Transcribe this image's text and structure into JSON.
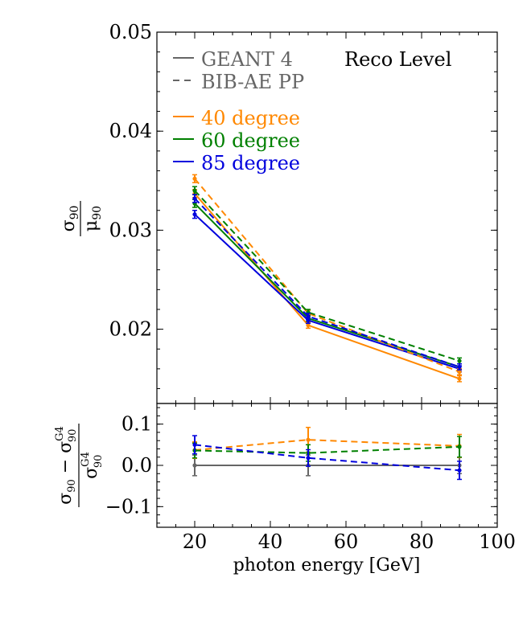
{
  "chart_data": [
    {
      "type": "line",
      "panel": "main",
      "ylabel": "σ90 / μ90",
      "ylabel_num": "σ",
      "ylabel_num_sub": "90",
      "ylabel_den": "μ",
      "ylabel_den_sub": "90",
      "xlim": [
        10,
        100
      ],
      "ylim": [
        0.0125,
        0.05
      ],
      "yticks": [
        0.02,
        0.03,
        0.04,
        0.05
      ],
      "ytick_labels": [
        "0.02",
        "0.03",
        "0.04",
        "0.05"
      ],
      "annotation": "Reco Level",
      "legend": {
        "style_entries": [
          {
            "label": "GEANT 4",
            "style": "solid",
            "color": "#666666"
          },
          {
            "label": "BIB-AE PP",
            "style": "dashed",
            "color": "#666666"
          }
        ],
        "color_entries": [
          {
            "label": "40 degree",
            "color": "#ff8800"
          },
          {
            "label": "60 degree",
            "color": "#008000"
          },
          {
            "label": "85 degree",
            "color": "#0000dd"
          }
        ]
      },
      "x": [
        20,
        50,
        90
      ],
      "series": [
        {
          "name": "40 degree",
          "model": "GEANT 4",
          "color": "#ff8800",
          "dashed": false,
          "values": [
            0.0337,
            0.0204,
            0.015
          ],
          "errors": [
            0.0004,
            0.0003,
            0.0003
          ]
        },
        {
          "name": "60 degree",
          "model": "GEANT 4",
          "color": "#008000",
          "dashed": false,
          "values": [
            0.0327,
            0.0211,
            0.0162
          ],
          "errors": [
            0.0004,
            0.0003,
            0.0003
          ]
        },
        {
          "name": "85 degree",
          "model": "GEANT 4",
          "color": "#0000dd",
          "dashed": false,
          "values": [
            0.0316,
            0.0209,
            0.016
          ],
          "errors": [
            0.0004,
            0.0003,
            0.0003
          ]
        },
        {
          "name": "40 degree",
          "model": "BIB-AE PP",
          "color": "#ff8800",
          "dashed": true,
          "values": [
            0.0352,
            0.0216,
            0.0157
          ],
          "errors": [
            0.0004,
            0.0003,
            0.0003
          ]
        },
        {
          "name": "60 degree",
          "model": "BIB-AE PP",
          "color": "#008000",
          "dashed": true,
          "values": [
            0.034,
            0.0217,
            0.0168
          ],
          "errors": [
            0.0004,
            0.0003,
            0.0003
          ]
        },
        {
          "name": "85 degree",
          "model": "BIB-AE PP",
          "color": "#0000dd",
          "dashed": true,
          "values": [
            0.0332,
            0.0213,
            0.0162
          ],
          "errors": [
            0.0004,
            0.0003,
            0.0003
          ]
        }
      ]
    },
    {
      "type": "line",
      "panel": "ratio",
      "xlabel": "photon energy [GeV]",
      "ylabel": "(σ90 − σ90^G4) / σ90^G4",
      "xlim": [
        10,
        100
      ],
      "ylim": [
        -0.15,
        0.15
      ],
      "xticks": [
        20,
        40,
        60,
        80,
        100
      ],
      "xtick_labels": [
        "20",
        "40",
        "60",
        "80",
        "100"
      ],
      "yticks": [
        -0.1,
        0.0,
        0.1
      ],
      "ytick_labels": [
        "−0.1",
        "0.0",
        "0.1"
      ],
      "x": [
        20,
        50,
        90
      ],
      "series": [
        {
          "name": "GEANT 4",
          "color": "#666666",
          "dashed": false,
          "values": [
            0.0,
            0.0,
            0.0
          ],
          "errors": [
            0.025,
            0.025,
            0.02
          ]
        },
        {
          "name": "40 degree",
          "color": "#ff8800",
          "dashed": true,
          "values": [
            0.037,
            0.062,
            0.047
          ],
          "errors": [
            0.02,
            0.03,
            0.028
          ]
        },
        {
          "name": "60 degree",
          "color": "#008000",
          "dashed": true,
          "values": [
            0.036,
            0.03,
            0.045
          ],
          "errors": [
            0.018,
            0.02,
            0.025
          ]
        },
        {
          "name": "85 degree",
          "color": "#0000dd",
          "dashed": true,
          "values": [
            0.05,
            0.018,
            -0.012
          ],
          "errors": [
            0.022,
            0.02,
            0.022
          ]
        }
      ]
    }
  ]
}
